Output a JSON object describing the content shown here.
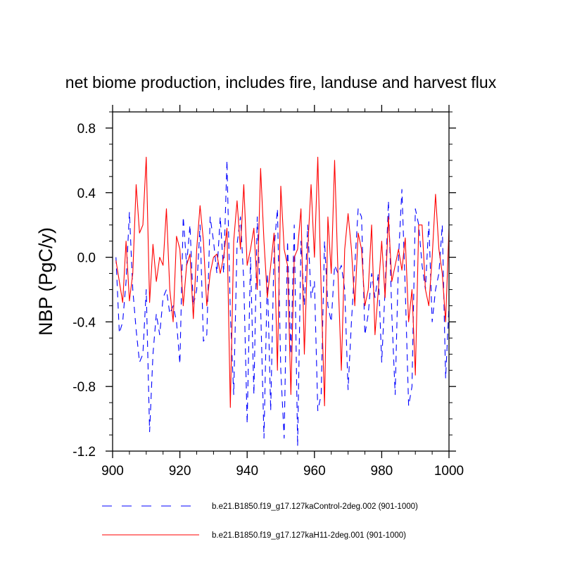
{
  "chart_data": {
    "type": "line",
    "title": "net biome production, includes fire, landuse and harvest flux",
    "xlabel": "",
    "ylabel": "NBP  (PgC/y)",
    "xlim": [
      900,
      1000
    ],
    "ylim": [
      -1.2,
      0.9
    ],
    "xticks": [
      900,
      920,
      940,
      960,
      980,
      1000
    ],
    "xtick_labels": [
      "900",
      "920",
      "940",
      "960",
      "980",
      "1000"
    ],
    "yticks": [
      -1.2,
      -0.8,
      -0.4,
      0.0,
      0.4,
      0.8
    ],
    "ytick_labels": [
      "-1.2",
      "-0.8",
      "-0.4",
      "0.0",
      "0.4",
      "0.8"
    ],
    "grid": false,
    "legend_position": "bottom",
    "series": [
      {
        "name": "b.e21.B1850.f19_g17.127kaControl-2deg.002 (901-1000)",
        "color": "#0000ff",
        "style": "dashed",
        "x_start": 901,
        "values": [
          0.0,
          -0.47,
          -0.4,
          -0.15,
          0.28,
          -0.2,
          -0.45,
          -0.65,
          -0.6,
          -0.2,
          -1.08,
          -0.6,
          -0.35,
          -0.48,
          -0.25,
          -0.2,
          -0.35,
          -0.3,
          -0.4,
          -0.66,
          0.25,
          -0.05,
          0.2,
          -0.3,
          -0.2,
          0.2,
          -0.52,
          -0.48,
          0.25,
          0.1,
          -0.1,
          0.25,
          -0.1,
          0.6,
          -0.35,
          -0.85,
          0.08,
          0.25,
          -0.15,
          -1.03,
          0.0,
          -0.85,
          0.25,
          -0.3,
          -1.12,
          -0.1,
          -0.95,
          0.05,
          0.3,
          -0.7,
          -1.12,
          0.1,
          -0.6,
          0.2,
          -1.17,
          0.1,
          -0.3,
          0.2,
          -0.25,
          -0.15,
          -0.95,
          -0.85,
          0.1,
          -0.3,
          -0.4,
          -0.05,
          -0.1,
          -0.05,
          -0.2,
          -0.82,
          -0.4,
          -0.05,
          0.3,
          0.25,
          -0.48,
          -0.35,
          -0.1,
          -0.25,
          -0.1,
          -0.65,
          -0.2,
          0.35,
          -0.35,
          -0.85,
          0.0,
          0.42,
          -0.2,
          -0.92,
          -0.8,
          0.3,
          0.2,
          -0.05,
          -0.2,
          0.22,
          -0.4,
          -0.2,
          -0.1,
          0.2,
          -0.75,
          -0.3
        ],
        "visible_min": -1.17,
        "visible_max": 0.6
      },
      {
        "name": "b.e21.B1850.f19_g17.127kaH11-2deg.001 (901-1000)",
        "color": "#ff0000",
        "style": "solid",
        "x_start": 901,
        "values": [
          -0.02,
          -0.15,
          -0.28,
          0.1,
          -0.27,
          -0.1,
          0.45,
          0.15,
          0.2,
          0.62,
          -0.28,
          0.08,
          -0.15,
          0.0,
          -0.05,
          0.3,
          -0.2,
          -0.4,
          0.13,
          0.05,
          -0.3,
          -0.05,
          0.02,
          -0.38,
          0.05,
          0.32,
          0.1,
          -0.3,
          -0.1,
          0.0,
          0.02,
          -0.1,
          0.0,
          0.18,
          -0.93,
          0.1,
          0.35,
          0.05,
          0.45,
          -0.05,
          0.05,
          0.18,
          -0.2,
          0.55,
          0.1,
          -0.25,
          -0.05,
          0.15,
          -0.7,
          0.44,
          0.05,
          -0.05,
          -0.85,
          0.0,
          0.05,
          0.3,
          -0.6,
          0.05,
          0.45,
          0.0,
          0.62,
          -0.2,
          -0.92,
          0.25,
          -0.1,
          0.6,
          -0.1,
          -0.7,
          0.05,
          0.27,
          0.05,
          -0.3,
          0.15,
          0.05,
          -0.3,
          -0.2,
          0.2,
          -0.48,
          -0.2,
          0.1,
          -0.25,
          0.25,
          -0.15,
          -0.05,
          0.05,
          -0.08,
          0.12,
          -0.4,
          -0.2,
          -0.73,
          0.2,
          0.2,
          -0.2,
          -0.3,
          0.0,
          0.39,
          0.05,
          -0.1,
          -0.4,
          0.18
        ],
        "visible_min": -0.93,
        "visible_max": 0.62
      }
    ]
  }
}
